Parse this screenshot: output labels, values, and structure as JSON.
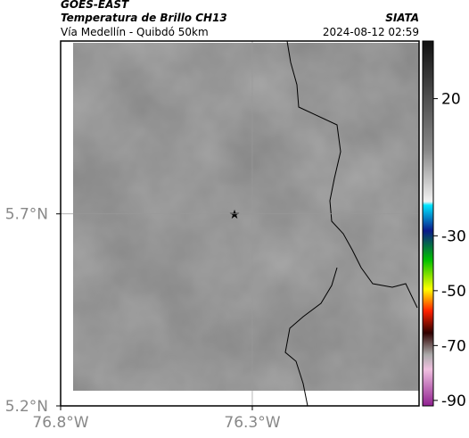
{
  "header": {
    "source": "GOES-EAST",
    "title": "Temperatura de Brillo CH13",
    "subtitle": "Vía Medellín - Quibdó 50km",
    "brand": "SIATA",
    "timestamp": "2024-08-12 02:59"
  },
  "map": {
    "xlim": [
      -76.8,
      -75.865
    ],
    "ylim": [
      5.2,
      6.15
    ],
    "xticks": [
      {
        "value": -76.8,
        "label": "76.8°W"
      },
      {
        "value": -76.3,
        "label": "76.3°W"
      }
    ],
    "yticks": [
      {
        "value": 5.2,
        "label": "5.2°N"
      },
      {
        "value": 5.7,
        "label": "5.7°N"
      }
    ],
    "grid": true
  },
  "colorbar": {
    "range": [
      -92,
      41
    ],
    "ticks": [
      20,
      -30,
      -50,
      -70,
      -90
    ]
  }
}
